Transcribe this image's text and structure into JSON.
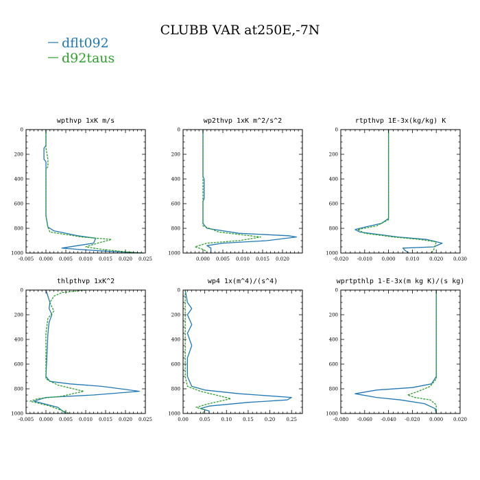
{
  "figure": {
    "title": "CLUBB VAR at250E,-7N",
    "legend": [
      {
        "name": "dflt092",
        "color": "#1f77b4",
        "dash": "solid"
      },
      {
        "name": "d92taus",
        "color": "#2ca02c",
        "dash": "dashed"
      }
    ]
  },
  "chart_data": [
    {
      "type": "line",
      "title": "wpthvp  1xK m/s",
      "xlim": [
        -0.005,
        0.025
      ],
      "ylim": [
        1000,
        0
      ],
      "xticks": [
        "-0.005",
        "0.000",
        "0.005",
        "0.010",
        "0.015",
        "0.020",
        "0.025"
      ],
      "yticks": [
        "0",
        "200",
        "400",
        "600",
        "800",
        "1000"
      ],
      "series": [
        {
          "name": "dflt092",
          "points": [
            [
              0.0,
              0
            ],
            [
              0.0,
              130
            ],
            [
              -0.0005,
              150
            ],
            [
              -0.0005,
              240
            ],
            [
              0.0,
              260
            ],
            [
              0.0,
              700
            ],
            [
              0.0005,
              790
            ],
            [
              0.002,
              820
            ],
            [
              0.008,
              860
            ],
            [
              0.0125,
              880
            ],
            [
              0.012,
              920
            ],
            [
              0.008,
              940
            ],
            [
              0.004,
              960
            ],
            [
              0.008,
              970
            ],
            [
              0.015,
              985
            ],
            [
              0.0245,
              1000
            ]
          ]
        },
        {
          "name": "d92taus",
          "points": [
            [
              0.0,
              0
            ],
            [
              0.0,
              150
            ],
            [
              0.0005,
              240
            ],
            [
              0.0005,
              300
            ],
            [
              0.0,
              320
            ],
            [
              0.0,
              700
            ],
            [
              0.0005,
              790
            ],
            [
              0.001,
              830
            ],
            [
              0.009,
              870
            ],
            [
              0.0165,
              890
            ],
            [
              0.013,
              920
            ],
            [
              0.01,
              950
            ],
            [
              0.014,
              970
            ],
            [
              0.02,
              990
            ],
            [
              0.0245,
              1000
            ]
          ]
        }
      ]
    },
    {
      "type": "line",
      "title": "wp2thvp  1xK m^2/s^2",
      "xlim": [
        -0.005,
        0.025
      ],
      "ylim": [
        1000,
        0
      ],
      "xticks": [
        "0.000",
        "0.005",
        "0.010",
        "0.015",
        "0.020"
      ],
      "yticks": [
        "0",
        "200",
        "400",
        "600",
        "800",
        "1000"
      ],
      "series": [
        {
          "name": "dflt092",
          "points": [
            [
              0.0,
              0
            ],
            [
              0.0,
              380
            ],
            [
              0.0003,
              400
            ],
            [
              0.0003,
              560
            ],
            [
              0.0,
              580
            ],
            [
              0.0,
              760
            ],
            [
              0.001,
              800
            ],
            [
              0.009,
              840
            ],
            [
              0.0215,
              860
            ],
            [
              0.0235,
              870
            ],
            [
              0.016,
              900
            ],
            [
              0.005,
              920
            ],
            [
              0.001,
              940
            ],
            [
              0.002,
              960
            ],
            [
              0.002,
              1000
            ]
          ]
        },
        {
          "name": "d92taus",
          "points": [
            [
              0.0,
              0
            ],
            [
              0.0,
              700
            ],
            [
              0.0,
              780
            ],
            [
              0.004,
              830
            ],
            [
              0.0145,
              870
            ],
            [
              0.009,
              900
            ],
            [
              0.001,
              920
            ],
            [
              -0.002,
              950
            ],
            [
              0.0,
              970
            ],
            [
              0.001,
              990
            ],
            [
              0.001,
              1000
            ]
          ]
        }
      ]
    },
    {
      "type": "line",
      "title": "rtpthvp  1E-3x(kg/kg) K",
      "xlim": [
        -0.02,
        0.03
      ],
      "ylim": [
        1000,
        0
      ],
      "xticks": [
        "-0.020",
        "-0.010",
        "0.000",
        "0.010",
        "0.020",
        "0.030"
      ],
      "yticks": [
        "0",
        "200",
        "400",
        "600",
        "800",
        "1000"
      ],
      "series": [
        {
          "name": "dflt092",
          "points": [
            [
              0.0,
              0
            ],
            [
              0.0,
              720
            ],
            [
              -0.003,
              760
            ],
            [
              -0.01,
              790
            ],
            [
              -0.014,
              810
            ],
            [
              -0.012,
              830
            ],
            [
              0.004,
              870
            ],
            [
              0.016,
              890
            ],
            [
              0.0225,
              920
            ],
            [
              0.019,
              950
            ],
            [
              0.006,
              960
            ],
            [
              0.007,
              980
            ],
            [
              0.0085,
              1000
            ]
          ]
        },
        {
          "name": "d92taus",
          "points": [
            [
              0.0,
              0
            ],
            [
              0.0,
              730
            ],
            [
              -0.005,
              780
            ],
            [
              -0.013,
              810
            ],
            [
              -0.01,
              840
            ],
            [
              0.002,
              870
            ],
            [
              0.013,
              890
            ],
            [
              0.02,
              910
            ],
            [
              0.0195,
              940
            ],
            [
              0.019,
              970
            ],
            [
              0.018,
              1000
            ]
          ]
        }
      ]
    },
    {
      "type": "line",
      "title": "thlpthvp  1xK^2",
      "xlim": [
        -0.005,
        0.025
      ],
      "ylim": [
        1000,
        0
      ],
      "xticks": [
        "-0.005",
        "0.000",
        "0.005",
        "0.010",
        "0.015",
        "0.020",
        "0.025"
      ],
      "yticks": [
        "0",
        "200",
        "400",
        "600",
        "800",
        "1000"
      ],
      "series": [
        {
          "name": "dflt092",
          "points": [
            [
              0.0,
              0
            ],
            [
              0.0005,
              50
            ],
            [
              0.001,
              100
            ],
            [
              0.0008,
              150
            ],
            [
              0.0015,
              200
            ],
            [
              0.0008,
              260
            ],
            [
              0.0005,
              350
            ],
            [
              0.0,
              700
            ],
            [
              0.001,
              740
            ],
            [
              0.006,
              760
            ],
            [
              0.014,
              780
            ],
            [
              0.0235,
              820
            ],
            [
              0.012,
              850
            ],
            [
              0.0,
              870
            ],
            [
              -0.003,
              900
            ],
            [
              0.003,
              950
            ],
            [
              0.005,
              1000
            ]
          ]
        },
        {
          "name": "d92taus",
          "points": [
            [
              0.01,
              0
            ],
            [
              0.004,
              20
            ],
            [
              0.002,
              50
            ],
            [
              0.001,
              100
            ],
            [
              0.002,
              170
            ],
            [
              0.0005,
              230
            ],
            [
              0.0,
              350
            ],
            [
              0.0,
              720
            ],
            [
              0.003,
              770
            ],
            [
              0.0095,
              820
            ],
            [
              0.004,
              860
            ],
            [
              -0.002,
              880
            ],
            [
              -0.004,
              900
            ],
            [
              0.001,
              940
            ],
            [
              0.006,
              1000
            ]
          ]
        }
      ]
    },
    {
      "type": "line",
      "title": "wp4  1x(m^4)/(s^4)",
      "xlim": [
        0.0,
        0.275
      ],
      "ylim": [
        1000,
        0
      ],
      "xticks": [
        "0.00",
        "0.05",
        "0.10",
        "0.15",
        "0.20",
        "0.25"
      ],
      "yticks": [
        "0",
        "200",
        "400",
        "600",
        "800",
        "1000"
      ],
      "series": [
        {
          "name": "dflt092",
          "points": [
            [
              0.005,
              0
            ],
            [
              0.01,
              100
            ],
            [
              0.02,
              150
            ],
            [
              0.01,
              200
            ],
            [
              0.02,
              280
            ],
            [
              0.01,
              350
            ],
            [
              0.02,
              450
            ],
            [
              0.01,
              550
            ],
            [
              0.01,
              700
            ],
            [
              0.02,
              780
            ],
            [
              0.05,
              810
            ],
            [
              0.13,
              840
            ],
            [
              0.25,
              870
            ],
            [
              0.24,
              890
            ],
            [
              0.15,
              910
            ],
            [
              0.06,
              940
            ],
            [
              0.04,
              960
            ],
            [
              0.06,
              980
            ],
            [
              0.06,
              1000
            ]
          ]
        },
        {
          "name": "d92taus",
          "points": [
            [
              0.005,
              0
            ],
            [
              0.005,
              100
            ],
            [
              0.005,
              200
            ],
            [
              0.005,
              400
            ],
            [
              0.005,
              700
            ],
            [
              0.01,
              780
            ],
            [
              0.04,
              820
            ],
            [
              0.11,
              880
            ],
            [
              0.06,
              920
            ],
            [
              0.03,
              950
            ],
            [
              0.05,
              970
            ],
            [
              0.045,
              1000
            ]
          ]
        }
      ]
    },
    {
      "type": "line",
      "title": "wprtpthlp  1-E-3x(m kg K)/(s kg)",
      "xlim": [
        -0.08,
        0.02
      ],
      "ylim": [
        1000,
        0
      ],
      "xticks": [
        "-0.080",
        "-0.060",
        "-0.040",
        "-0.020",
        "0.000",
        "0.020"
      ],
      "yticks": [
        "0",
        "200",
        "400",
        "600",
        "800",
        "1000"
      ],
      "series": [
        {
          "name": "dflt092",
          "points": [
            [
              0.0,
              0
            ],
            [
              0.0,
              700
            ],
            [
              -0.004,
              760
            ],
            [
              -0.02,
              790
            ],
            [
              -0.05,
              810
            ],
            [
              -0.068,
              840
            ],
            [
              -0.05,
              870
            ],
            [
              -0.03,
              890
            ],
            [
              -0.01,
              920
            ],
            [
              -0.001,
              960
            ],
            [
              0.0,
              1000
            ]
          ]
        },
        {
          "name": "d92taus",
          "points": [
            [
              0.0,
              0
            ],
            [
              0.0,
              720
            ],
            [
              -0.005,
              780
            ],
            [
              -0.015,
              820
            ],
            [
              -0.024,
              850
            ],
            [
              -0.018,
              870
            ],
            [
              -0.005,
              890
            ],
            [
              0.0,
              930
            ],
            [
              0.0,
              1000
            ]
          ]
        }
      ]
    }
  ]
}
